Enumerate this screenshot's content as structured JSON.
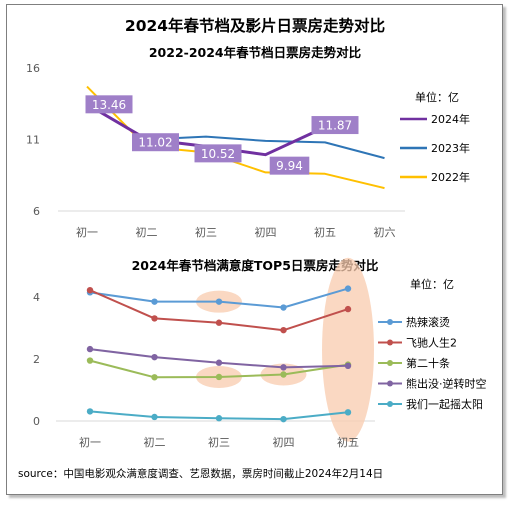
{
  "title": "2024年春节档及影片日票房走势对比",
  "source": "source：中国电影观众满意度调查、艺恩数据，票房时间截止2024年2月14日",
  "colors": {
    "y2024": "#7030a0",
    "y2023": "#2e75b6",
    "y2022": "#ffc000",
    "label_box": "#9f7fc8",
    "hot": "#5b9bd5",
    "fly": "#c0504d",
    "twenty": "#9bbb59",
    "bear": "#8064a2",
    "together": "#4bacc6",
    "highlight": "#f8cbad",
    "grid": "#d9d9d9"
  },
  "chart_data": [
    {
      "type": "line",
      "title": "2022-2024年春节档日票房走势对比",
      "unit_label": "单位：亿",
      "categories": [
        "初一",
        "初二",
        "初三",
        "初四",
        "初五",
        "初六"
      ],
      "ylim": [
        6,
        16
      ],
      "yticks": [
        "6",
        "11",
        "16"
      ],
      "yticks_values": [
        6,
        11,
        16
      ],
      "legend_position": "right",
      "series": [
        {
          "name": "2024年",
          "color_key": "y2024",
          "values": [
            13.46,
            11.02,
            10.52,
            9.94,
            11.87,
            null
          ],
          "data_labels": [
            "13.46",
            "11.02",
            "10.52",
            "9.94",
            "11.87",
            ""
          ]
        },
        {
          "name": "2023年",
          "color_key": "y2023",
          "values": [
            13.5,
            11.0,
            11.2,
            10.9,
            10.8,
            9.7
          ]
        },
        {
          "name": "2022年",
          "color_key": "y2022",
          "values": [
            14.7,
            10.5,
            10.1,
            8.7,
            8.6,
            7.6
          ]
        }
      ]
    },
    {
      "type": "line",
      "title": "2024年春节档满意度TOP5日票房走势对比",
      "unit_label": "单位：亿",
      "categories": [
        "初一",
        "初二",
        "初三",
        "初四",
        "初五"
      ],
      "ylim": [
        0,
        4.2
      ],
      "yticks": [
        "0",
        "2",
        "4"
      ],
      "yticks_values": [
        0,
        2,
        4
      ],
      "legend_position": "right",
      "series": [
        {
          "name": "热辣滚烫",
          "color_key": "hot",
          "values": [
            4.15,
            3.85,
            3.85,
            3.66,
            4.27
          ]
        },
        {
          "name": "飞驰人生2",
          "color_key": "fly",
          "values": [
            4.22,
            3.31,
            3.17,
            2.93,
            3.61
          ]
        },
        {
          "name": "第二十条",
          "color_key": "twenty",
          "values": [
            1.95,
            1.41,
            1.42,
            1.5,
            1.82
          ]
        },
        {
          "name": "熊出没·逆转时空",
          "color_key": "bear",
          "values": [
            2.32,
            2.06,
            1.88,
            1.73,
            1.78
          ]
        },
        {
          "name": "我们一起摇太阳",
          "color_key": "together",
          "values": [
            0.31,
            0.13,
            0.09,
            0.06,
            0.28
          ]
        }
      ]
    }
  ]
}
